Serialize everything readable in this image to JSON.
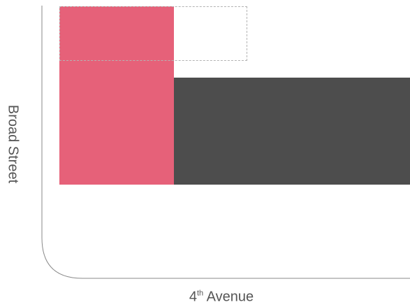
{
  "labels": {
    "vertical_street": "Broad Street",
    "horizontal_street": {
      "number": "4",
      "suffix": "th",
      "name": " Avenue"
    }
  },
  "colors": {
    "pink_block": "#e66179",
    "dark_block": "#4d4d4d",
    "dashed_outline": "#b3b3b3",
    "street_edge": "#8a8a8a",
    "label_text": "#555555"
  }
}
